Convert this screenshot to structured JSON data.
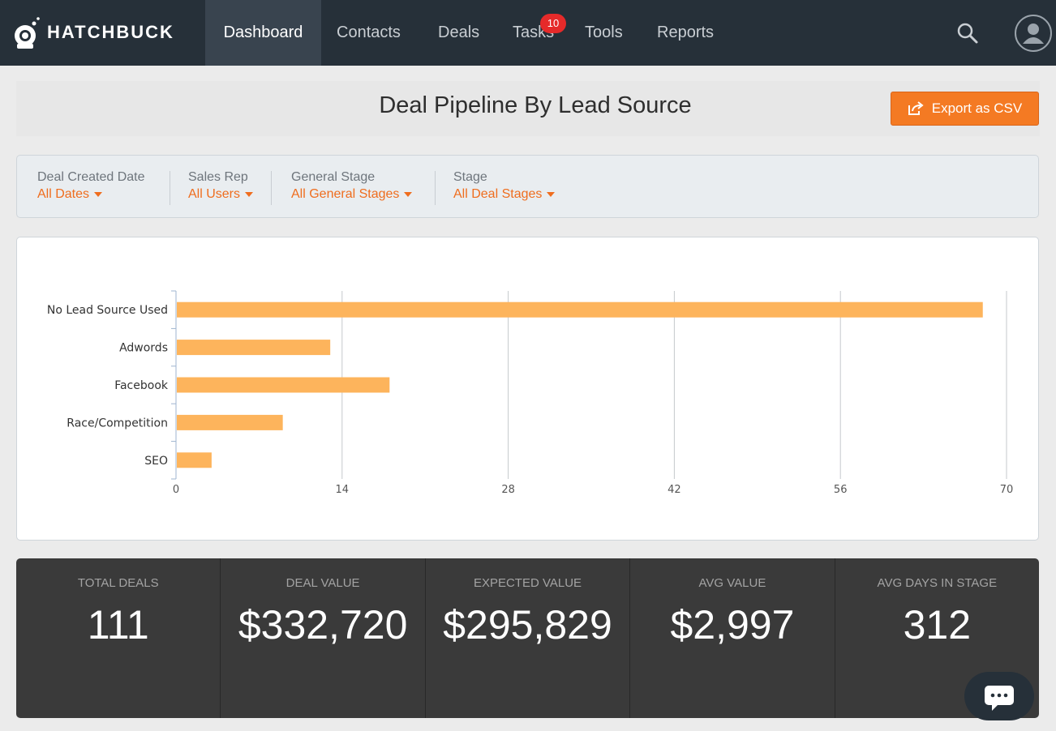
{
  "app": {
    "brand": "HATCHBUCK"
  },
  "nav": {
    "items": [
      {
        "label": "Dashboard",
        "active": true
      },
      {
        "label": "Contacts"
      },
      {
        "label": "Deals"
      },
      {
        "label": "Tasks"
      },
      {
        "label": "Tools"
      },
      {
        "label": "Reports"
      }
    ],
    "tasks_badge": "10",
    "icons": [
      "search-icon",
      "user-avatar-icon"
    ]
  },
  "page": {
    "title": "Deal Pipeline By Lead Source",
    "export_label": "Export as CSV",
    "export_icon": "export-icon"
  },
  "filters": [
    {
      "label": "Deal Created Date",
      "value": "All Dates"
    },
    {
      "label": "Sales Rep",
      "value": "All Users"
    },
    {
      "label": "General Stage",
      "value": "All General Stages"
    },
    {
      "label": "Stage",
      "value": "All Deal Stages"
    }
  ],
  "chart_data": {
    "type": "bar",
    "orientation": "horizontal",
    "categories": [
      "No Lead Source Used",
      "Adwords",
      "Facebook",
      "Race/Competition",
      "SEO"
    ],
    "values": [
      68,
      13,
      18,
      9,
      3
    ],
    "xlim": [
      0,
      70
    ],
    "xticks": [
      0,
      14,
      28,
      42,
      56,
      70
    ],
    "grid": true,
    "bar_color": "#fdb45c"
  },
  "stats": [
    {
      "label": "TOTAL DEALS",
      "value": "111"
    },
    {
      "label": "DEAL VALUE",
      "value": "$332,720"
    },
    {
      "label": "EXPECTED VALUE",
      "value": "$295,829"
    },
    {
      "label": "AVG VALUE",
      "value": "$2,997"
    },
    {
      "label": "AVG DAYS IN STAGE",
      "value": "312"
    }
  ],
  "colors": {
    "nav_bg": "#263039",
    "accent": "#f47a23",
    "badge": "#e52a2a",
    "stats_bg": "#3a3a3a"
  }
}
